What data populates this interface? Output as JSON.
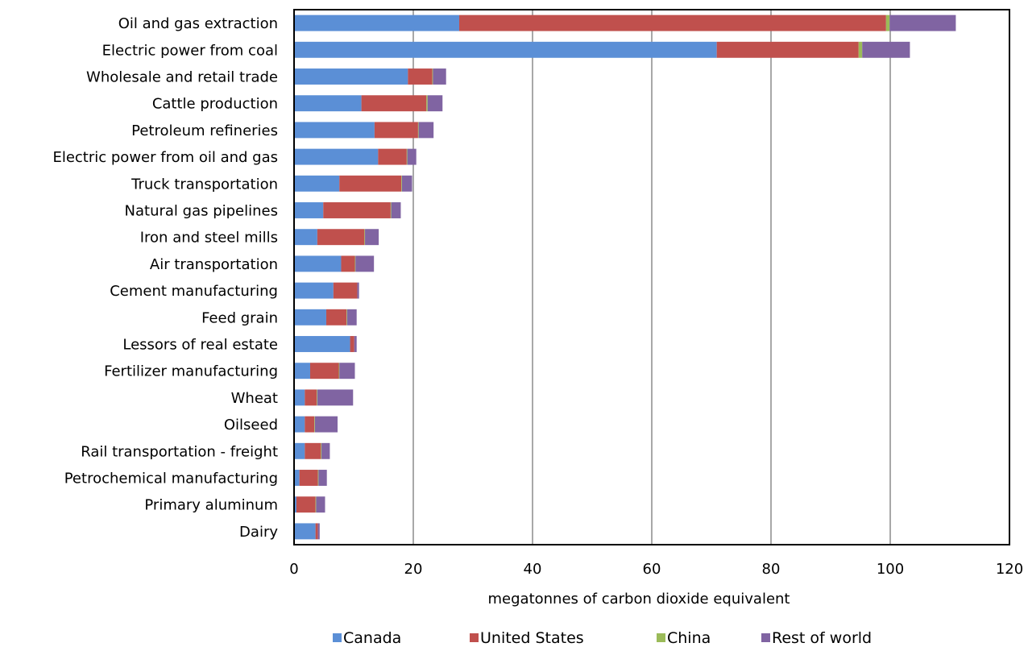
{
  "chart_data": {
    "type": "bar",
    "orientation": "horizontal",
    "stacked": true,
    "title": "",
    "xlabel": "megatonnes of carbon dioxide equivalent",
    "ylabel": "",
    "xlim": [
      0,
      120
    ],
    "x_ticks": [
      0,
      20,
      40,
      60,
      80,
      100,
      120
    ],
    "grid": "vertical",
    "legend_position": "bottom",
    "categories": [
      "Oil and gas extraction",
      "Electric power from coal",
      "Wholesale and retail trade",
      "Cattle production",
      "Petroleum refineries",
      "Electric power from oil and gas",
      "Truck transportation",
      "Natural gas pipelines",
      "Iron and steel mills ",
      "Air transportation",
      "Cement manufacturing",
      "Feed grain",
      "Lessors of real estate",
      "Fertilizer manufacturing",
      "Wheat",
      "Oilseed",
      "Rail transportation - freight",
      "Petrochemical manufacturing",
      "Primary aluminum",
      "Dairy"
    ],
    "series": [
      {
        "name": "Canada",
        "color": "#5B8FD6",
        "values": [
          27.7,
          70.9,
          19.1,
          11.3,
          13.5,
          14.1,
          7.6,
          4.9,
          3.9,
          7.9,
          6.6,
          5.4,
          9.4,
          2.7,
          1.8,
          1.8,
          1.8,
          0.9,
          0.4,
          3.6
        ]
      },
      {
        "name": "United States",
        "color": "#C0504D",
        "values": [
          71.6,
          23.8,
          4.1,
          10.9,
          7.3,
          4.8,
          10.4,
          11.3,
          7.9,
          2.3,
          4.0,
          3.4,
          0.7,
          4.8,
          2.0,
          1.6,
          2.7,
          3.1,
          3.2,
          0.4
        ]
      },
      {
        "name": "China",
        "color": "#9BBB59",
        "values": [
          0.6,
          0.6,
          0.1,
          0.2,
          0.1,
          0.1,
          0.1,
          0.1,
          0.1,
          0.1,
          0.0,
          0.1,
          0.0,
          0.1,
          0.1,
          0.1,
          0.1,
          0.1,
          0.1,
          0.0
        ]
      },
      {
        "name": "Rest of world",
        "color": "#8064A2",
        "values": [
          11.1,
          8.0,
          2.2,
          2.5,
          2.5,
          1.5,
          1.7,
          1.6,
          2.3,
          3.1,
          0.3,
          1.6,
          0.4,
          2.6,
          6.0,
          3.8,
          1.4,
          1.4,
          1.5,
          0.3
        ]
      }
    ]
  }
}
